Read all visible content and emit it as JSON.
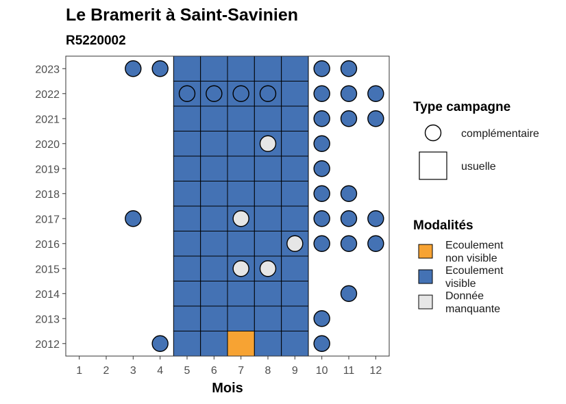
{
  "chart_data": {
    "type": "heatmap",
    "title": "Le Bramerit à Saint-Savinien",
    "subtitle": "R5220002",
    "xlabel": "Mois",
    "ylabel": "",
    "x_ticks": [
      1,
      2,
      3,
      4,
      5,
      6,
      7,
      8,
      9,
      10,
      11,
      12
    ],
    "y_ticks": [
      2012,
      2013,
      2014,
      2015,
      2016,
      2017,
      2018,
      2019,
      2020,
      2021,
      2022,
      2023
    ],
    "xlim": [
      0.5,
      12.5
    ],
    "ylim": [
      2011.5,
      2023.5
    ],
    "grid": false,
    "legend_position": "right",
    "legend": {
      "shape_title": "Type campagne",
      "shapes": [
        {
          "key": "complementaire",
          "label": "complémentaire",
          "shape": "circle"
        },
        {
          "key": "usuelle",
          "label": "usuelle",
          "shape": "square"
        }
      ],
      "fill_title": "Modalités",
      "fills": [
        {
          "key": "ecoulement_non_visible",
          "label_lines": [
            "Ecoulement",
            "non visible"
          ],
          "color": "#F7A333"
        },
        {
          "key": "ecoulement_visible",
          "label_lines": [
            "Ecoulement",
            "visible"
          ],
          "color": "#4472B4"
        },
        {
          "key": "donnee_manquante",
          "label_lines": [
            "Donnée",
            "manquante"
          ],
          "color": "#E6E6E6"
        }
      ]
    },
    "points": [
      {
        "year": 2023,
        "month": 3,
        "type": "complementaire",
        "modalite": "ecoulement_visible"
      },
      {
        "year": 2023,
        "month": 4,
        "type": "complementaire",
        "modalite": "ecoulement_visible"
      },
      {
        "year": 2023,
        "month": 5,
        "type": "usuelle",
        "modalite": "ecoulement_visible"
      },
      {
        "year": 2023,
        "month": 6,
        "type": "usuelle",
        "modalite": "ecoulement_visible"
      },
      {
        "year": 2023,
        "month": 7,
        "type": "usuelle",
        "modalite": "ecoulement_visible"
      },
      {
        "year": 2023,
        "month": 8,
        "type": "usuelle",
        "modalite": "ecoulement_visible"
      },
      {
        "year": 2023,
        "month": 9,
        "type": "usuelle",
        "modalite": "ecoulement_visible"
      },
      {
        "year": 2023,
        "month": 10,
        "type": "complementaire",
        "modalite": "ecoulement_visible"
      },
      {
        "year": 2023,
        "month": 11,
        "type": "complementaire",
        "modalite": "ecoulement_visible"
      },
      {
        "year": 2022,
        "month": 5,
        "type": "complementaire",
        "modalite": "ecoulement_visible"
      },
      {
        "year": 2022,
        "month": 6,
        "type": "complementaire",
        "modalite": "ecoulement_visible"
      },
      {
        "year": 2022,
        "month": 7,
        "type": "complementaire",
        "modalite": "ecoulement_visible"
      },
      {
        "year": 2022,
        "month": 8,
        "type": "complementaire",
        "modalite": "ecoulement_visible"
      },
      {
        "year": 2022,
        "month": 5,
        "type": "usuelle",
        "modalite": "ecoulement_visible"
      },
      {
        "year": 2022,
        "month": 6,
        "type": "usuelle",
        "modalite": "ecoulement_visible"
      },
      {
        "year": 2022,
        "month": 7,
        "type": "usuelle",
        "modalite": "ecoulement_visible"
      },
      {
        "year": 2022,
        "month": 8,
        "type": "usuelle",
        "modalite": "ecoulement_visible"
      },
      {
        "year": 2022,
        "month": 9,
        "type": "usuelle",
        "modalite": "ecoulement_visible"
      },
      {
        "year": 2022,
        "month": 10,
        "type": "complementaire",
        "modalite": "ecoulement_visible"
      },
      {
        "year": 2022,
        "month": 11,
        "type": "complementaire",
        "modalite": "ecoulement_visible"
      },
      {
        "year": 2022,
        "month": 12,
        "type": "complementaire",
        "modalite": "ecoulement_visible"
      },
      {
        "year": 2021,
        "month": 5,
        "type": "usuelle",
        "modalite": "ecoulement_visible"
      },
      {
        "year": 2021,
        "month": 6,
        "type": "usuelle",
        "modalite": "ecoulement_visible"
      },
      {
        "year": 2021,
        "month": 7,
        "type": "usuelle",
        "modalite": "ecoulement_visible"
      },
      {
        "year": 2021,
        "month": 8,
        "type": "usuelle",
        "modalite": "ecoulement_visible"
      },
      {
        "year": 2021,
        "month": 9,
        "type": "usuelle",
        "modalite": "ecoulement_visible"
      },
      {
        "year": 2021,
        "month": 10,
        "type": "complementaire",
        "modalite": "ecoulement_visible"
      },
      {
        "year": 2021,
        "month": 11,
        "type": "complementaire",
        "modalite": "ecoulement_visible"
      },
      {
        "year": 2021,
        "month": 12,
        "type": "complementaire",
        "modalite": "ecoulement_visible"
      },
      {
        "year": 2020,
        "month": 5,
        "type": "usuelle",
        "modalite": "ecoulement_visible"
      },
      {
        "year": 2020,
        "month": 6,
        "type": "usuelle",
        "modalite": "ecoulement_visible"
      },
      {
        "year": 2020,
        "month": 7,
        "type": "usuelle",
        "modalite": "ecoulement_visible"
      },
      {
        "year": 2020,
        "month": 8,
        "type": "usuelle",
        "modalite": "ecoulement_visible"
      },
      {
        "year": 2020,
        "month": 8,
        "type": "complementaire",
        "modalite": "donnee_manquante"
      },
      {
        "year": 2020,
        "month": 9,
        "type": "usuelle",
        "modalite": "ecoulement_visible"
      },
      {
        "year": 2020,
        "month": 10,
        "type": "complementaire",
        "modalite": "ecoulement_visible"
      },
      {
        "year": 2019,
        "month": 5,
        "type": "usuelle",
        "modalite": "ecoulement_visible"
      },
      {
        "year": 2019,
        "month": 6,
        "type": "usuelle",
        "modalite": "ecoulement_visible"
      },
      {
        "year": 2019,
        "month": 7,
        "type": "usuelle",
        "modalite": "ecoulement_visible"
      },
      {
        "year": 2019,
        "month": 8,
        "type": "usuelle",
        "modalite": "ecoulement_visible"
      },
      {
        "year": 2019,
        "month": 9,
        "type": "usuelle",
        "modalite": "ecoulement_visible"
      },
      {
        "year": 2019,
        "month": 10,
        "type": "complementaire",
        "modalite": "ecoulement_visible"
      },
      {
        "year": 2018,
        "month": 5,
        "type": "usuelle",
        "modalite": "ecoulement_visible"
      },
      {
        "year": 2018,
        "month": 6,
        "type": "usuelle",
        "modalite": "ecoulement_visible"
      },
      {
        "year": 2018,
        "month": 7,
        "type": "usuelle",
        "modalite": "ecoulement_visible"
      },
      {
        "year": 2018,
        "month": 8,
        "type": "usuelle",
        "modalite": "ecoulement_visible"
      },
      {
        "year": 2018,
        "month": 9,
        "type": "usuelle",
        "modalite": "ecoulement_visible"
      },
      {
        "year": 2018,
        "month": 10,
        "type": "complementaire",
        "modalite": "ecoulement_visible"
      },
      {
        "year": 2018,
        "month": 11,
        "type": "complementaire",
        "modalite": "ecoulement_visible"
      },
      {
        "year": 2017,
        "month": 3,
        "type": "complementaire",
        "modalite": "ecoulement_visible"
      },
      {
        "year": 2017,
        "month": 5,
        "type": "usuelle",
        "modalite": "ecoulement_visible"
      },
      {
        "year": 2017,
        "month": 6,
        "type": "usuelle",
        "modalite": "ecoulement_visible"
      },
      {
        "year": 2017,
        "month": 7,
        "type": "usuelle",
        "modalite": "ecoulement_visible"
      },
      {
        "year": 2017,
        "month": 7,
        "type": "complementaire",
        "modalite": "donnee_manquante"
      },
      {
        "year": 2017,
        "month": 8,
        "type": "usuelle",
        "modalite": "ecoulement_visible"
      },
      {
        "year": 2017,
        "month": 9,
        "type": "usuelle",
        "modalite": "ecoulement_visible"
      },
      {
        "year": 2017,
        "month": 10,
        "type": "complementaire",
        "modalite": "ecoulement_visible"
      },
      {
        "year": 2017,
        "month": 11,
        "type": "complementaire",
        "modalite": "ecoulement_visible"
      },
      {
        "year": 2017,
        "month": 12,
        "type": "complementaire",
        "modalite": "ecoulement_visible"
      },
      {
        "year": 2016,
        "month": 5,
        "type": "usuelle",
        "modalite": "ecoulement_visible"
      },
      {
        "year": 2016,
        "month": 6,
        "type": "usuelle",
        "modalite": "ecoulement_visible"
      },
      {
        "year": 2016,
        "month": 7,
        "type": "usuelle",
        "modalite": "ecoulement_visible"
      },
      {
        "year": 2016,
        "month": 8,
        "type": "usuelle",
        "modalite": "ecoulement_visible"
      },
      {
        "year": 2016,
        "month": 9,
        "type": "usuelle",
        "modalite": "ecoulement_visible"
      },
      {
        "year": 2016,
        "month": 9,
        "type": "complementaire",
        "modalite": "donnee_manquante"
      },
      {
        "year": 2016,
        "month": 10,
        "type": "complementaire",
        "modalite": "ecoulement_visible"
      },
      {
        "year": 2016,
        "month": 11,
        "type": "complementaire",
        "modalite": "ecoulement_visible"
      },
      {
        "year": 2016,
        "month": 12,
        "type": "complementaire",
        "modalite": "ecoulement_visible"
      },
      {
        "year": 2015,
        "month": 5,
        "type": "usuelle",
        "modalite": "ecoulement_visible"
      },
      {
        "year": 2015,
        "month": 6,
        "type": "usuelle",
        "modalite": "ecoulement_visible"
      },
      {
        "year": 2015,
        "month": 7,
        "type": "usuelle",
        "modalite": "ecoulement_visible"
      },
      {
        "year": 2015,
        "month": 7,
        "type": "complementaire",
        "modalite": "donnee_manquante"
      },
      {
        "year": 2015,
        "month": 8,
        "type": "usuelle",
        "modalite": "ecoulement_visible"
      },
      {
        "year": 2015,
        "month": 8,
        "type": "complementaire",
        "modalite": "donnee_manquante"
      },
      {
        "year": 2015,
        "month": 9,
        "type": "usuelle",
        "modalite": "ecoulement_visible"
      },
      {
        "year": 2014,
        "month": 5,
        "type": "usuelle",
        "modalite": "ecoulement_visible"
      },
      {
        "year": 2014,
        "month": 6,
        "type": "usuelle",
        "modalite": "ecoulement_visible"
      },
      {
        "year": 2014,
        "month": 7,
        "type": "usuelle",
        "modalite": "ecoulement_visible"
      },
      {
        "year": 2014,
        "month": 8,
        "type": "usuelle",
        "modalite": "ecoulement_visible"
      },
      {
        "year": 2014,
        "month": 9,
        "type": "usuelle",
        "modalite": "ecoulement_visible"
      },
      {
        "year": 2014,
        "month": 11,
        "type": "complementaire",
        "modalite": "ecoulement_visible"
      },
      {
        "year": 2013,
        "month": 5,
        "type": "usuelle",
        "modalite": "ecoulement_visible"
      },
      {
        "year": 2013,
        "month": 6,
        "type": "usuelle",
        "modalite": "ecoulement_visible"
      },
      {
        "year": 2013,
        "month": 7,
        "type": "usuelle",
        "modalite": "ecoulement_visible"
      },
      {
        "year": 2013,
        "month": 8,
        "type": "usuelle",
        "modalite": "ecoulement_visible"
      },
      {
        "year": 2013,
        "month": 9,
        "type": "usuelle",
        "modalite": "ecoulement_visible"
      },
      {
        "year": 2013,
        "month": 10,
        "type": "complementaire",
        "modalite": "ecoulement_visible"
      },
      {
        "year": 2012,
        "month": 4,
        "type": "complementaire",
        "modalite": "ecoulement_visible"
      },
      {
        "year": 2012,
        "month": 5,
        "type": "usuelle",
        "modalite": "ecoulement_visible"
      },
      {
        "year": 2012,
        "month": 6,
        "type": "usuelle",
        "modalite": "ecoulement_visible"
      },
      {
        "year": 2012,
        "month": 7,
        "type": "usuelle",
        "modalite": "ecoulement_non_visible"
      },
      {
        "year": 2012,
        "month": 8,
        "type": "usuelle",
        "modalite": "ecoulement_visible"
      },
      {
        "year": 2012,
        "month": 9,
        "type": "usuelle",
        "modalite": "ecoulement_visible"
      },
      {
        "year": 2012,
        "month": 10,
        "type": "complementaire",
        "modalite": "ecoulement_visible"
      }
    ]
  }
}
